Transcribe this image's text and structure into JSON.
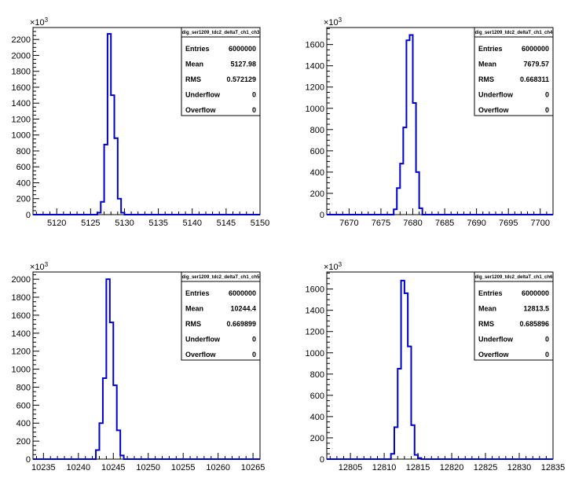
{
  "colors": {
    "histogram_line": "#0000cc",
    "frame": "#000000",
    "background": "#ffffff"
  },
  "chart_data": [
    {
      "type": "bar",
      "title": "dig_ser1209_tdc2_deltaT_ch1_ch3",
      "y_multiplier": "×10",
      "y_multiplier_exp": "3",
      "xlim": [
        5116.5,
        5150
      ],
      "ylim": [
        0,
        2350
      ],
      "x_ticks": [
        5120,
        5125,
        5130,
        5135,
        5140,
        5145,
        5150
      ],
      "y_ticks": [
        0,
        200,
        400,
        600,
        800,
        1000,
        1200,
        1400,
        1600,
        1800,
        2000,
        2200
      ],
      "bin_edges": [
        5126,
        5126.5,
        5127,
        5127.5,
        5128,
        5128.5,
        5129,
        5129.5,
        5130
      ],
      "values": [
        25,
        160,
        880,
        2270,
        1500,
        960,
        200,
        25
      ],
      "stats": [
        {
          "label": "Entries",
          "value": "6000000"
        },
        {
          "label": "Mean",
          "value": "5127.98"
        },
        {
          "label": "RMS",
          "value": "0.572129"
        },
        {
          "label": "Underflow",
          "value": "0"
        },
        {
          "label": "Overflow",
          "value": "0"
        }
      ]
    },
    {
      "type": "bar",
      "title": "dig_ser1209_tdc2_deltaT_ch1_ch4",
      "y_multiplier": "×10",
      "y_multiplier_exp": "3",
      "xlim": [
        7666.5,
        7702
      ],
      "ylim": [
        0,
        1760
      ],
      "x_ticks": [
        7670,
        7675,
        7680,
        7685,
        7690,
        7695,
        7700
      ],
      "y_ticks": [
        0,
        200,
        400,
        600,
        800,
        1000,
        1200,
        1400,
        1600
      ],
      "bin_edges": [
        7677,
        7677.5,
        7678,
        7678.5,
        7679,
        7679.5,
        7680,
        7680.5,
        7681,
        7681.5
      ],
      "values": [
        50,
        250,
        480,
        820,
        1640,
        1690,
        1050,
        400,
        60
      ],
      "stats": [
        {
          "label": "Entries",
          "value": "6000000"
        },
        {
          "label": "Mean",
          "value": "7679.57"
        },
        {
          "label": "RMS",
          "value": "0.668311"
        },
        {
          "label": "Underflow",
          "value": "0"
        },
        {
          "label": "Overflow",
          "value": "0"
        }
      ]
    },
    {
      "type": "bar",
      "title": "dig_ser1209_tdc2_deltaT_ch1_ch5",
      "y_multiplier": "×10",
      "y_multiplier_exp": "3",
      "xlim": [
        10233.5,
        10266
      ],
      "ylim": [
        0,
        2080
      ],
      "x_ticks": [
        10235,
        10240,
        10245,
        10250,
        10255,
        10260,
        10265
      ],
      "y_ticks": [
        0,
        200,
        400,
        600,
        800,
        1000,
        1200,
        1400,
        1600,
        1800,
        2000
      ],
      "bin_edges": [
        10242.5,
        10243,
        10243.5,
        10244,
        10244.5,
        10245,
        10245.5,
        10246,
        10246.5
      ],
      "values": [
        100,
        400,
        900,
        2000,
        1520,
        820,
        320,
        40
      ],
      "stats": [
        {
          "label": "Entries",
          "value": "6000000"
        },
        {
          "label": "Mean",
          "value": "10244.4"
        },
        {
          "label": "RMS",
          "value": "0.669899"
        },
        {
          "label": "Underflow",
          "value": "0"
        },
        {
          "label": "Overflow",
          "value": "0"
        }
      ]
    },
    {
      "type": "bar",
      "title": "dig_ser1209_tdc2_deltaT_ch1_ch6",
      "y_multiplier": "×10",
      "y_multiplier_exp": "3",
      "xlim": [
        12801.5,
        12835
      ],
      "ylim": [
        0,
        1760
      ],
      "x_ticks": [
        12805,
        12810,
        12815,
        12820,
        12825,
        12830,
        12835
      ],
      "y_ticks": [
        0,
        200,
        400,
        600,
        800,
        1000,
        1200,
        1400,
        1600
      ],
      "bin_edges": [
        12811,
        12811.5,
        12812,
        12812.5,
        12813,
        12813.5,
        12814,
        12814.5,
        12815,
        12815.5
      ],
      "values": [
        50,
        300,
        850,
        1680,
        1560,
        1060,
        320,
        40,
        10
      ],
      "stats": [
        {
          "label": "Entries",
          "value": "6000000"
        },
        {
          "label": "Mean",
          "value": "12813.5"
        },
        {
          "label": "RMS",
          "value": "0.685896"
        },
        {
          "label": "Underflow",
          "value": "0"
        },
        {
          "label": "Overflow",
          "value": "0"
        }
      ]
    }
  ]
}
